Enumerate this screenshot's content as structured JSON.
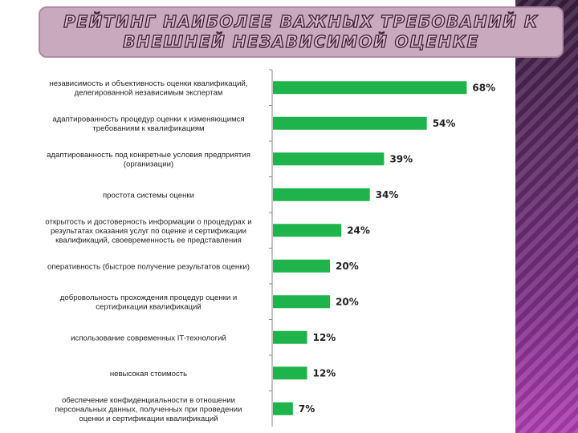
{
  "slide": {
    "title_lines": [
      "РЕЙТИНГ НАИБОЛЕЕ ВАЖНЫХ ТРЕБОВАНИЙ К",
      "ВНЕШНЕЙ НЕЗАВИСИМОЙ ОЦЕНКЕ"
    ],
    "accent_color": "#c9a9bd",
    "stripe_color": "#7c2f86"
  },
  "chart_data": {
    "type": "bar",
    "orientation": "horizontal",
    "bar_color": "#1fb34b",
    "categories": [
      [
        "независимость и  объективность оценки квалификаций,",
        "делегированной независимым экспертам"
      ],
      [
        "адаптированность процедур оценки к изменяющимся",
        "требованиям к квалификациям"
      ],
      [
        "адаптированность под конкретные условия предприятия",
        "(организации)"
      ],
      [
        "простота системы оценки"
      ],
      [
        "открытость и достоверность информации о процедурах и",
        "результатах оказания услуг по оценке и сертификации",
        "квалификаций, своевременность ее представления"
      ],
      [
        "оперативность (быстрое получение результатов оценки)"
      ],
      [
        "добровольность прохождения процедур оценки и",
        "сертификации квалификаций"
      ],
      [
        "использование современных IT-технологий"
      ],
      [
        "невысокая стоимость"
      ],
      [
        "обеспечение конфиденциальности в отношении",
        "персональных данных, полученных при проведении",
        "оценки и сертификации квалификаций"
      ]
    ],
    "values": [
      68,
      54,
      39,
      34,
      24,
      20,
      20,
      12,
      12,
      7
    ],
    "value_labels": [
      "68%",
      "54%",
      "39%",
      "34%",
      "24%",
      "20%",
      "20%",
      "12%",
      "12%",
      "7%"
    ],
    "xlim": [
      0,
      70
    ],
    "grid": false,
    "legend": "none"
  }
}
